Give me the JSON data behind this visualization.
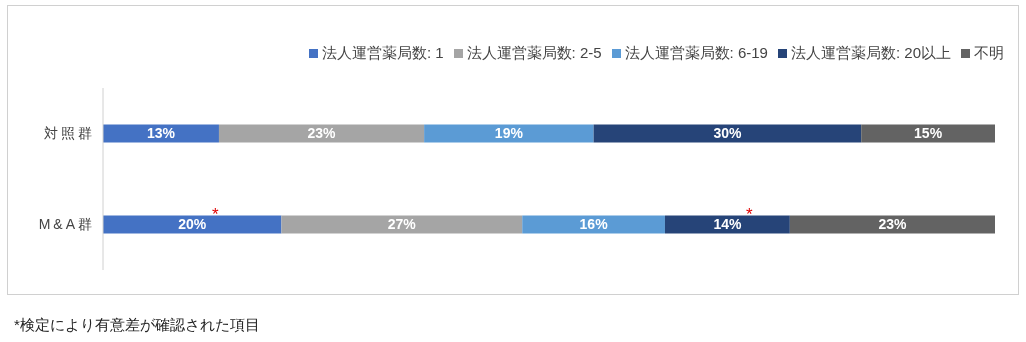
{
  "chart_data": {
    "type": "bar",
    "orientation": "horizontal",
    "stacked": true,
    "categories": [
      "対照群",
      "M&A群"
    ],
    "xlim": [
      0,
      100
    ],
    "series": [
      {
        "name": "法人運営薬局数: 1",
        "color": "#4472c4",
        "values": [
          13,
          20
        ],
        "value_labels": [
          "13%",
          "20%"
        ]
      },
      {
        "name": "法人運営薬局数: 2-5",
        "color": "#a5a5a5",
        "values": [
          23,
          27
        ],
        "value_labels": [
          "23%",
          "27%"
        ]
      },
      {
        "name": "法人運営薬局数: 6-19",
        "color": "#5b9bd5",
        "values": [
          19,
          16
        ],
        "value_labels": [
          "19%",
          "16%"
        ]
      },
      {
        "name": "法人運営薬局数: 20以上",
        "color": "#264478",
        "values": [
          30,
          14
        ],
        "value_labels": [
          "30%",
          "14%"
        ]
      },
      {
        "name": "不明",
        "color": "#636363",
        "values": [
          15,
          23
        ],
        "value_labels": [
          "15%",
          "23%"
        ]
      }
    ],
    "legend": "top",
    "grid": false,
    "annotations": [
      "*",
      "*",
      "*検定により有意差が確認された項目"
    ]
  }
}
